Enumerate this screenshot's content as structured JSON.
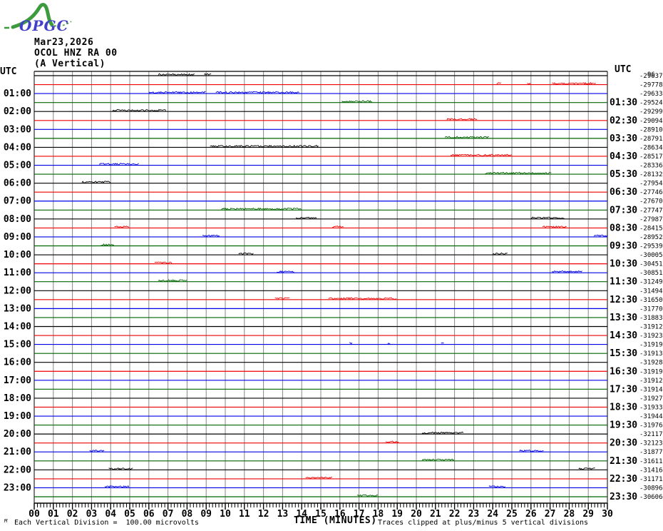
{
  "logo": {
    "text": "OPGC",
    "green": "#3d9b3d",
    "blue": "#4040c8"
  },
  "header": {
    "date": "Mar23,2026",
    "station": "OCOL HNZ RA 00",
    "component": "(A Vertical)"
  },
  "axes": {
    "utc_left": "UTC",
    "utc_right": "UTC"
  },
  "footer": {
    "corner_mark": "M",
    "scale_note": "Each Vertical Division =  100.00 microvolts",
    "x_title": "TIME (MINUTES)",
    "clip_note": "Traces clipped at plus/minus 5 vertical divisions"
  },
  "chart_data": {
    "type": "line",
    "subtype": "helicorder-seismogram",
    "title": "OCOL HNZ RA 00 (A Vertical) Mar23,2026",
    "xlabel": "TIME (MINUTES)",
    "x_axis": {
      "min": 0,
      "max": 30,
      "minor_ticks_per_minute": 6,
      "tick_labels": [
        "00",
        "01",
        "02",
        "03",
        "04",
        "05",
        "06",
        "07",
        "08",
        "09",
        "10",
        "11",
        "12",
        "13",
        "14",
        "15",
        "16",
        "17",
        "18",
        "19",
        "20",
        "21",
        "22",
        "23",
        "24",
        "25",
        "26",
        "27",
        "28",
        "29",
        "30"
      ]
    },
    "colors": {
      "black": "#000000",
      "red": "#ee0000",
      "blue": "#0000e6",
      "green": "#006400",
      "grid": "#878787"
    },
    "overlap_artifact": "96",
    "rows": [
      {
        "left": null,
        "right": null,
        "value": -29637,
        "color": "black",
        "noise": [
          [
            6.5,
            8.4
          ],
          [
            8.9,
            9.3
          ]
        ]
      },
      {
        "left": null,
        "right": null,
        "value": -29778,
        "color": "red",
        "noise": [
          [
            24.2,
            24.45
          ],
          [
            25.8,
            26.0
          ],
          [
            27.1,
            29.4
          ]
        ]
      },
      {
        "left": "01:00",
        "right": null,
        "value": -29633,
        "color": "blue",
        "noise": [
          [
            6.0,
            9.0
          ],
          [
            9.5,
            13.9
          ]
        ]
      },
      {
        "left": null,
        "right": "01:30",
        "value": -29524,
        "color": "green",
        "noise": [
          [
            16.1,
            17.7
          ]
        ]
      },
      {
        "left": "02:00",
        "right": null,
        "value": -29299,
        "color": "black",
        "noise": [
          [
            4.1,
            6.9
          ]
        ]
      },
      {
        "left": null,
        "right": "02:30",
        "value": -29094,
        "color": "red",
        "noise": [
          [
            21.6,
            23.2
          ]
        ]
      },
      {
        "left": "03:00",
        "right": null,
        "value": -28910,
        "color": "blue",
        "noise": []
      },
      {
        "left": null,
        "right": "03:30",
        "value": -28791,
        "color": "green",
        "noise": [
          [
            21.5,
            23.8
          ]
        ]
      },
      {
        "left": "04:00",
        "right": null,
        "value": -28634,
        "color": "black",
        "noise": [
          [
            9.2,
            14.9
          ]
        ]
      },
      {
        "left": null,
        "right": "04:30",
        "value": -28517,
        "color": "red",
        "noise": [
          [
            21.8,
            25.0
          ]
        ]
      },
      {
        "left": "05:00",
        "right": null,
        "value": -28336,
        "color": "blue",
        "noise": [
          [
            3.4,
            5.5
          ]
        ]
      },
      {
        "left": null,
        "right": "05:30",
        "value": -28132,
        "color": "green",
        "noise": [
          [
            23.6,
            27.1
          ]
        ]
      },
      {
        "left": "06:00",
        "right": null,
        "value": -27954,
        "color": "black",
        "noise": [
          [
            2.5,
            4.0
          ]
        ]
      },
      {
        "left": null,
        "right": "06:30",
        "value": -27746,
        "color": "red",
        "noise": []
      },
      {
        "left": "07:00",
        "right": null,
        "value": -27670,
        "color": "blue",
        "noise": []
      },
      {
        "left": null,
        "right": "07:30",
        "value": -27747,
        "color": "green",
        "noise": [
          [
            9.8,
            14.0
          ]
        ]
      },
      {
        "left": "08:00",
        "right": null,
        "value": -27987,
        "color": "black",
        "noise": [
          [
            13.7,
            14.8
          ],
          [
            26.0,
            27.8
          ]
        ]
      },
      {
        "left": null,
        "right": "08:30",
        "value": -28415,
        "color": "red",
        "noise": [
          [
            4.2,
            5.0
          ],
          [
            15.6,
            16.2
          ],
          [
            26.6,
            27.9
          ]
        ]
      },
      {
        "left": "09:00",
        "right": null,
        "value": -28952,
        "color": "blue",
        "noise": [
          [
            8.8,
            9.7
          ],
          [
            29.3,
            30.0
          ]
        ]
      },
      {
        "left": null,
        "right": "09:30",
        "value": -29539,
        "color": "green",
        "noise": [
          [
            3.5,
            4.2
          ]
        ]
      },
      {
        "left": "10:00",
        "right": null,
        "value": -30005,
        "color": "black",
        "noise": [
          [
            10.7,
            11.5
          ],
          [
            24.0,
            24.8
          ]
        ]
      },
      {
        "left": null,
        "right": "10:30",
        "value": -30451,
        "color": "red",
        "noise": [
          [
            6.3,
            7.2
          ]
        ]
      },
      {
        "left": "11:00",
        "right": null,
        "value": -30851,
        "color": "blue",
        "noise": [
          [
            12.7,
            13.6
          ],
          [
            27.1,
            28.7
          ]
        ]
      },
      {
        "left": null,
        "right": "11:30",
        "value": -31249,
        "color": "green",
        "noise": [
          [
            6.5,
            8.0
          ]
        ]
      },
      {
        "left": "12:00",
        "right": null,
        "value": -31494,
        "color": "black",
        "noise": []
      },
      {
        "left": null,
        "right": "12:30",
        "value": -31650,
        "color": "red",
        "noise": [
          [
            12.6,
            13.4
          ],
          [
            15.4,
            19.0
          ]
        ]
      },
      {
        "left": "13:00",
        "right": null,
        "value": -31770,
        "color": "blue",
        "noise": []
      },
      {
        "left": null,
        "right": "13:30",
        "value": -31883,
        "color": "green",
        "noise": []
      },
      {
        "left": "14:00",
        "right": null,
        "value": -31912,
        "color": "black",
        "noise": []
      },
      {
        "left": null,
        "right": "14:30",
        "value": -31923,
        "color": "red",
        "noise": []
      },
      {
        "left": "15:00",
        "right": null,
        "value": -31919,
        "color": "blue",
        "noise": [
          [
            16.5,
            16.65
          ],
          [
            18.5,
            18.65
          ],
          [
            21.3,
            21.45
          ]
        ]
      },
      {
        "left": null,
        "right": "15:30",
        "value": -31913,
        "color": "green",
        "noise": []
      },
      {
        "left": "16:00",
        "right": null,
        "value": -31928,
        "color": "black",
        "noise": []
      },
      {
        "left": null,
        "right": "16:30",
        "value": -31919,
        "color": "red",
        "noise": []
      },
      {
        "left": "17:00",
        "right": null,
        "value": -31912,
        "color": "blue",
        "noise": []
      },
      {
        "left": null,
        "right": "17:30",
        "value": -31914,
        "color": "green",
        "noise": []
      },
      {
        "left": "18:00",
        "right": null,
        "value": -31927,
        "color": "black",
        "noise": []
      },
      {
        "left": null,
        "right": "18:30",
        "value": -31933,
        "color": "red",
        "noise": []
      },
      {
        "left": "19:00",
        "right": null,
        "value": -31944,
        "color": "blue",
        "noise": []
      },
      {
        "left": null,
        "right": "19:30",
        "value": -31976,
        "color": "green",
        "noise": []
      },
      {
        "left": "20:00",
        "right": null,
        "value": -32117,
        "color": "black",
        "noise": [
          [
            20.3,
            22.5
          ]
        ]
      },
      {
        "left": null,
        "right": "20:30",
        "value": -32123,
        "color": "red",
        "noise": [
          [
            18.4,
            19.1
          ]
        ]
      },
      {
        "left": "21:00",
        "right": null,
        "value": -31877,
        "color": "blue",
        "noise": [
          [
            2.9,
            3.7
          ],
          [
            25.4,
            26.7
          ]
        ]
      },
      {
        "left": null,
        "right": "21:30",
        "value": -31611,
        "color": "green",
        "noise": [
          [
            20.3,
            22.0
          ]
        ]
      },
      {
        "left": "22:00",
        "right": null,
        "value": -31416,
        "color": "black",
        "noise": [
          [
            3.9,
            5.2
          ],
          [
            28.5,
            29.4
          ]
        ]
      },
      {
        "left": null,
        "right": "22:30",
        "value": -31171,
        "color": "red",
        "noise": [
          [
            14.2,
            15.6
          ]
        ]
      },
      {
        "left": "23:00",
        "right": null,
        "value": -30896,
        "color": "blue",
        "noise": [
          [
            3.7,
            5.0
          ],
          [
            23.8,
            24.7
          ]
        ]
      },
      {
        "left": null,
        "right": "23:30",
        "value": -30606,
        "color": "green",
        "noise": [
          [
            16.9,
            18.0
          ]
        ]
      }
    ]
  }
}
